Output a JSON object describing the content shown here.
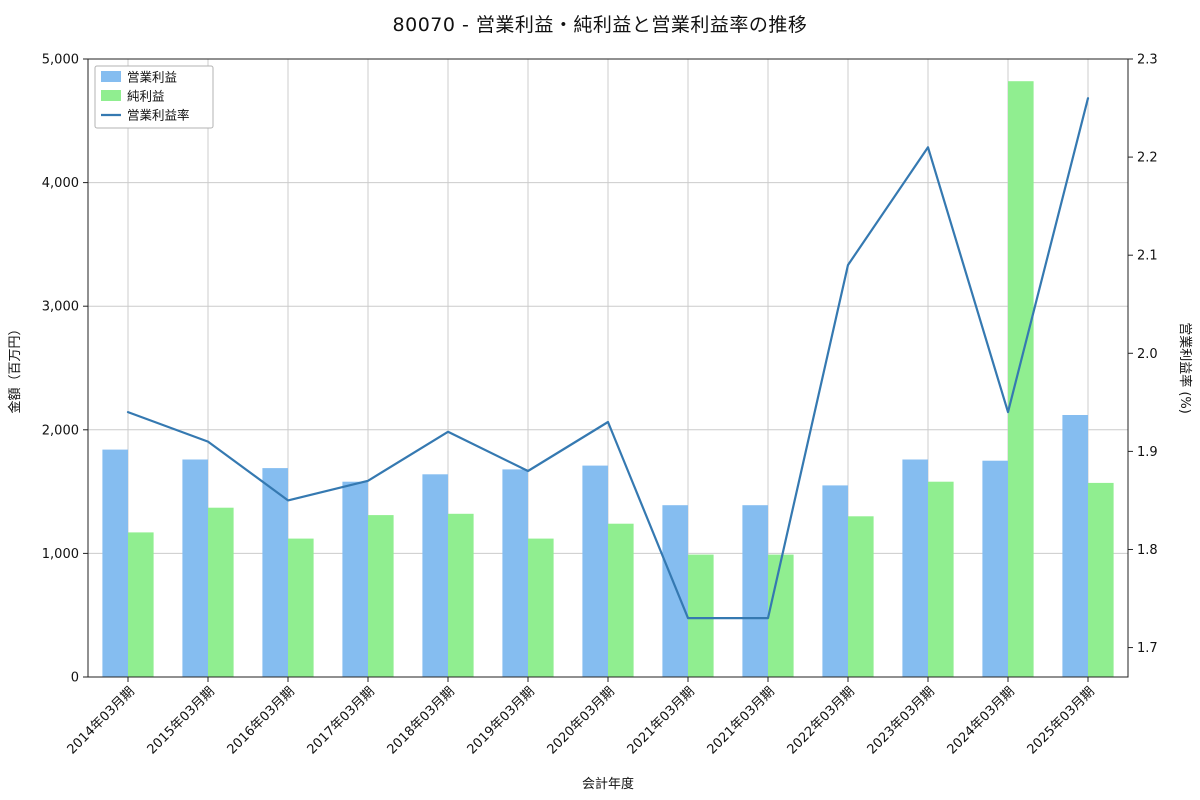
{
  "chart_data": {
    "type": "combo-bar-line",
    "title": "80070 - 営業利益・純利益と営業利益率の推移",
    "xlabel": "会計年度",
    "ylabel_left": "金額（百万円）",
    "ylabel_right": "営業利益率 (%)",
    "categories": [
      "2014年03月期",
      "2015年03月期",
      "2016年03月期",
      "2017年03月期",
      "2018年03月期",
      "2019年03月期",
      "2020年03月期",
      "2021年03月期",
      "2021年03月期",
      "2022年03月期",
      "2023年03月期",
      "2024年03月期",
      "2025年03月期"
    ],
    "bar_series": [
      {
        "name": "営業利益",
        "color": "#85bdf0",
        "values": [
          1840,
          1760,
          1690,
          1580,
          1640,
          1680,
          1710,
          1390,
          1390,
          1550,
          1760,
          1750,
          2120
        ]
      },
      {
        "name": "純利益",
        "color": "#90ee90",
        "values": [
          1170,
          1370,
          1120,
          1310,
          1320,
          1120,
          1240,
          990,
          990,
          1300,
          1580,
          4820,
          1570
        ]
      }
    ],
    "line_series": [
      {
        "name": "営業利益率",
        "color": "#3579b1",
        "axis": "right",
        "values": [
          1.94,
          1.91,
          1.85,
          1.87,
          1.92,
          1.88,
          1.93,
          1.73,
          1.73,
          2.09,
          2.21,
          1.94,
          2.26
        ]
      }
    ],
    "left_axis": {
      "min": 0,
      "max": 5000,
      "ticks": [
        0,
        1000,
        2000,
        3000,
        4000,
        5000
      ]
    },
    "right_axis": {
      "min": 1.67,
      "max": 2.3,
      "ticks": [
        1.7,
        1.8,
        1.9,
        2.0,
        2.1,
        2.2,
        2.3
      ]
    },
    "grid": true,
    "legend_position": "upper-left",
    "legend": [
      "営業利益",
      "純利益",
      "営業利益率"
    ]
  }
}
